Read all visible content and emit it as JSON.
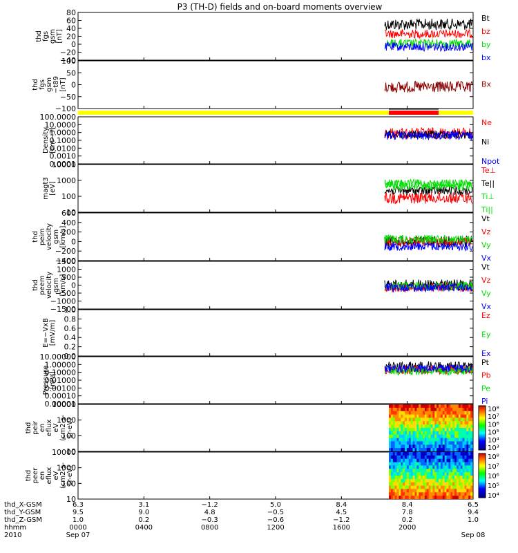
{
  "title": "P3 (TH-D) fields and on-board moments overview",
  "colors": {
    "black": "#000000",
    "red": "#ff0000",
    "green": "#00dd00",
    "blue": "#0000ff",
    "darkred": "#8b0000",
    "yellow": "#ffff00"
  },
  "chart_data": [
    {
      "type": "line",
      "ylabel": [
        "thd",
        "fgs",
        "gsm",
        "[nT]"
      ],
      "yticks": [
        "80",
        "60",
        "40",
        "20",
        "0",
        "−20",
        "−40"
      ],
      "legend": [
        {
          "name": "Bt",
          "color": "#000000"
        },
        {
          "name": "bz",
          "color": "#ff0000"
        },
        {
          "name": "by",
          "color": "#00dd00"
        },
        {
          "name": "bx",
          "color": "#0000ff"
        }
      ]
    },
    {
      "type": "line",
      "ylabel": [
        "thd",
        "fgs",
        "gsm",
        "−t89",
        "[nT]"
      ],
      "yticks": [
        "100",
        "50",
        "0",
        "−50",
        "−100"
      ],
      "legend": [
        {
          "name": "Bx",
          "color": "#8b0000"
        }
      ]
    },
    {
      "type": "bar",
      "name": "mode-bar",
      "colors": [
        "#ffff00",
        "#ff0000"
      ]
    },
    {
      "type": "line",
      "ylabel": [
        "Density",
        "[cm−3]"
      ],
      "yticks": [
        "100.0000",
        "10.0000",
        "1.0000",
        "0.1000",
        "0.0100",
        "0.0010",
        "0.0001"
      ],
      "legend": [
        {
          "name": "Ne",
          "color": "#ff0000"
        },
        {
          "name": "Ni",
          "color": "#000000"
        },
        {
          "name": "Npot",
          "color": "#0000ff"
        }
      ]
    },
    {
      "type": "line",
      "ylabel": [
        "magt3",
        "[eV]"
      ],
      "yticks": [
        "10000",
        "1000",
        "100",
        "10"
      ],
      "legend": [
        {
          "name": "Te⊥",
          "color": "#ff0000"
        },
        {
          "name": "Te||",
          "color": "#000000"
        },
        {
          "name": "Ti⊥",
          "color": "#00dd00"
        },
        {
          "name": "Ti||",
          "color": "#00dd00"
        }
      ]
    },
    {
      "type": "line",
      "ylabel": [
        "thd",
        "peim",
        "velocity",
        "gsm",
        "[km/s]"
      ],
      "yticks": [
        "600",
        "400",
        "200",
        "0",
        "−200",
        "−400"
      ],
      "legend": [
        {
          "name": "Vt",
          "color": "#000000"
        },
        {
          "name": "Vz",
          "color": "#ff0000"
        },
        {
          "name": "Vy",
          "color": "#00dd00"
        },
        {
          "name": "Vx",
          "color": "#0000ff"
        }
      ]
    },
    {
      "type": "line",
      "ylabel": [
        "thd",
        "peem",
        "velocity",
        "gsm",
        "[km/s]"
      ],
      "yticks": [
        "1500",
        "1000",
        "500",
        "0",
        "−500",
        "−1000",
        "−1500"
      ],
      "legend": [
        {
          "name": "Vt",
          "color": "#000000"
        },
        {
          "name": "Vz",
          "color": "#ff0000"
        },
        {
          "name": "Vy",
          "color": "#00dd00"
        },
        {
          "name": "Vx",
          "color": "#0000ff"
        }
      ]
    },
    {
      "type": "line",
      "ylabel": [
        "E=−VxB",
        "[mV/m]"
      ],
      "yticks": [
        "1.0",
        "0.8",
        "0.6",
        "0.4",
        "0.2",
        "0.0"
      ],
      "legend": [
        {
          "name": "Ez",
          "color": "#ff0000"
        },
        {
          "name": "Ey",
          "color": "#00dd00"
        },
        {
          "name": "Ex",
          "color": "#0000ff"
        }
      ]
    },
    {
      "type": "line",
      "ylabel": [
        "Pressure",
        "[nPa]"
      ],
      "yticks": [
        "10.00000",
        "1.00000",
        "0.10000",
        "0.01000",
        "0.00100",
        "0.00010",
        "0.00001"
      ],
      "legend": [
        {
          "name": "Pt",
          "color": "#000000"
        },
        {
          "name": "Pb",
          "color": "#ff0000"
        },
        {
          "name": "Pe",
          "color": "#00dd00"
        },
        {
          "name": "Pi",
          "color": "#0000ff"
        }
      ]
    },
    {
      "type": "heatmap",
      "ylabel": [
        "thd",
        "peir",
        "en",
        "eflux",
        "eV",
        "(cm2-s-",
        "sr-eV)"
      ],
      "yticks": [
        "10000",
        "1000",
        "100",
        "10"
      ],
      "colorbar": [
        "10⁸",
        "10⁷",
        "10⁶",
        "10⁵",
        "10⁴",
        "10³"
      ]
    },
    {
      "type": "heatmap",
      "ylabel": [
        "thd",
        "peer",
        "en",
        "eflux",
        "eV",
        "(cm2-s-",
        "sr-eV)"
      ],
      "yticks": [
        "10000",
        "1000",
        "100",
        "10"
      ],
      "colorbar": [
        "10⁸",
        "10⁷",
        "10⁶",
        "10⁵",
        "10⁴"
      ]
    }
  ],
  "xaxis": {
    "row_labels": [
      "thd_X-GSM",
      "thd_Y-GSM",
      "thd_Z-GSM",
      "hhmm",
      "2010"
    ],
    "columns": [
      [
        "6.3",
        "9.5",
        "1.0",
        "0000",
        "Sep 07"
      ],
      [
        "3.1",
        "9.0",
        "0.2",
        "0400",
        ""
      ],
      [
        "−1.2",
        "4.8",
        "−0.3",
        "0800",
        ""
      ],
      [
        "5.0",
        "−0.5",
        "−0.6",
        "1200",
        ""
      ],
      [
        "8.4",
        "4.5",
        "−1.2",
        "1600",
        ""
      ],
      [
        "8.4",
        "7.8",
        "0.2",
        "2000",
        ""
      ],
      [
        "6.5",
        "9.4",
        "1.0",
        "",
        "Sep 08"
      ]
    ]
  }
}
